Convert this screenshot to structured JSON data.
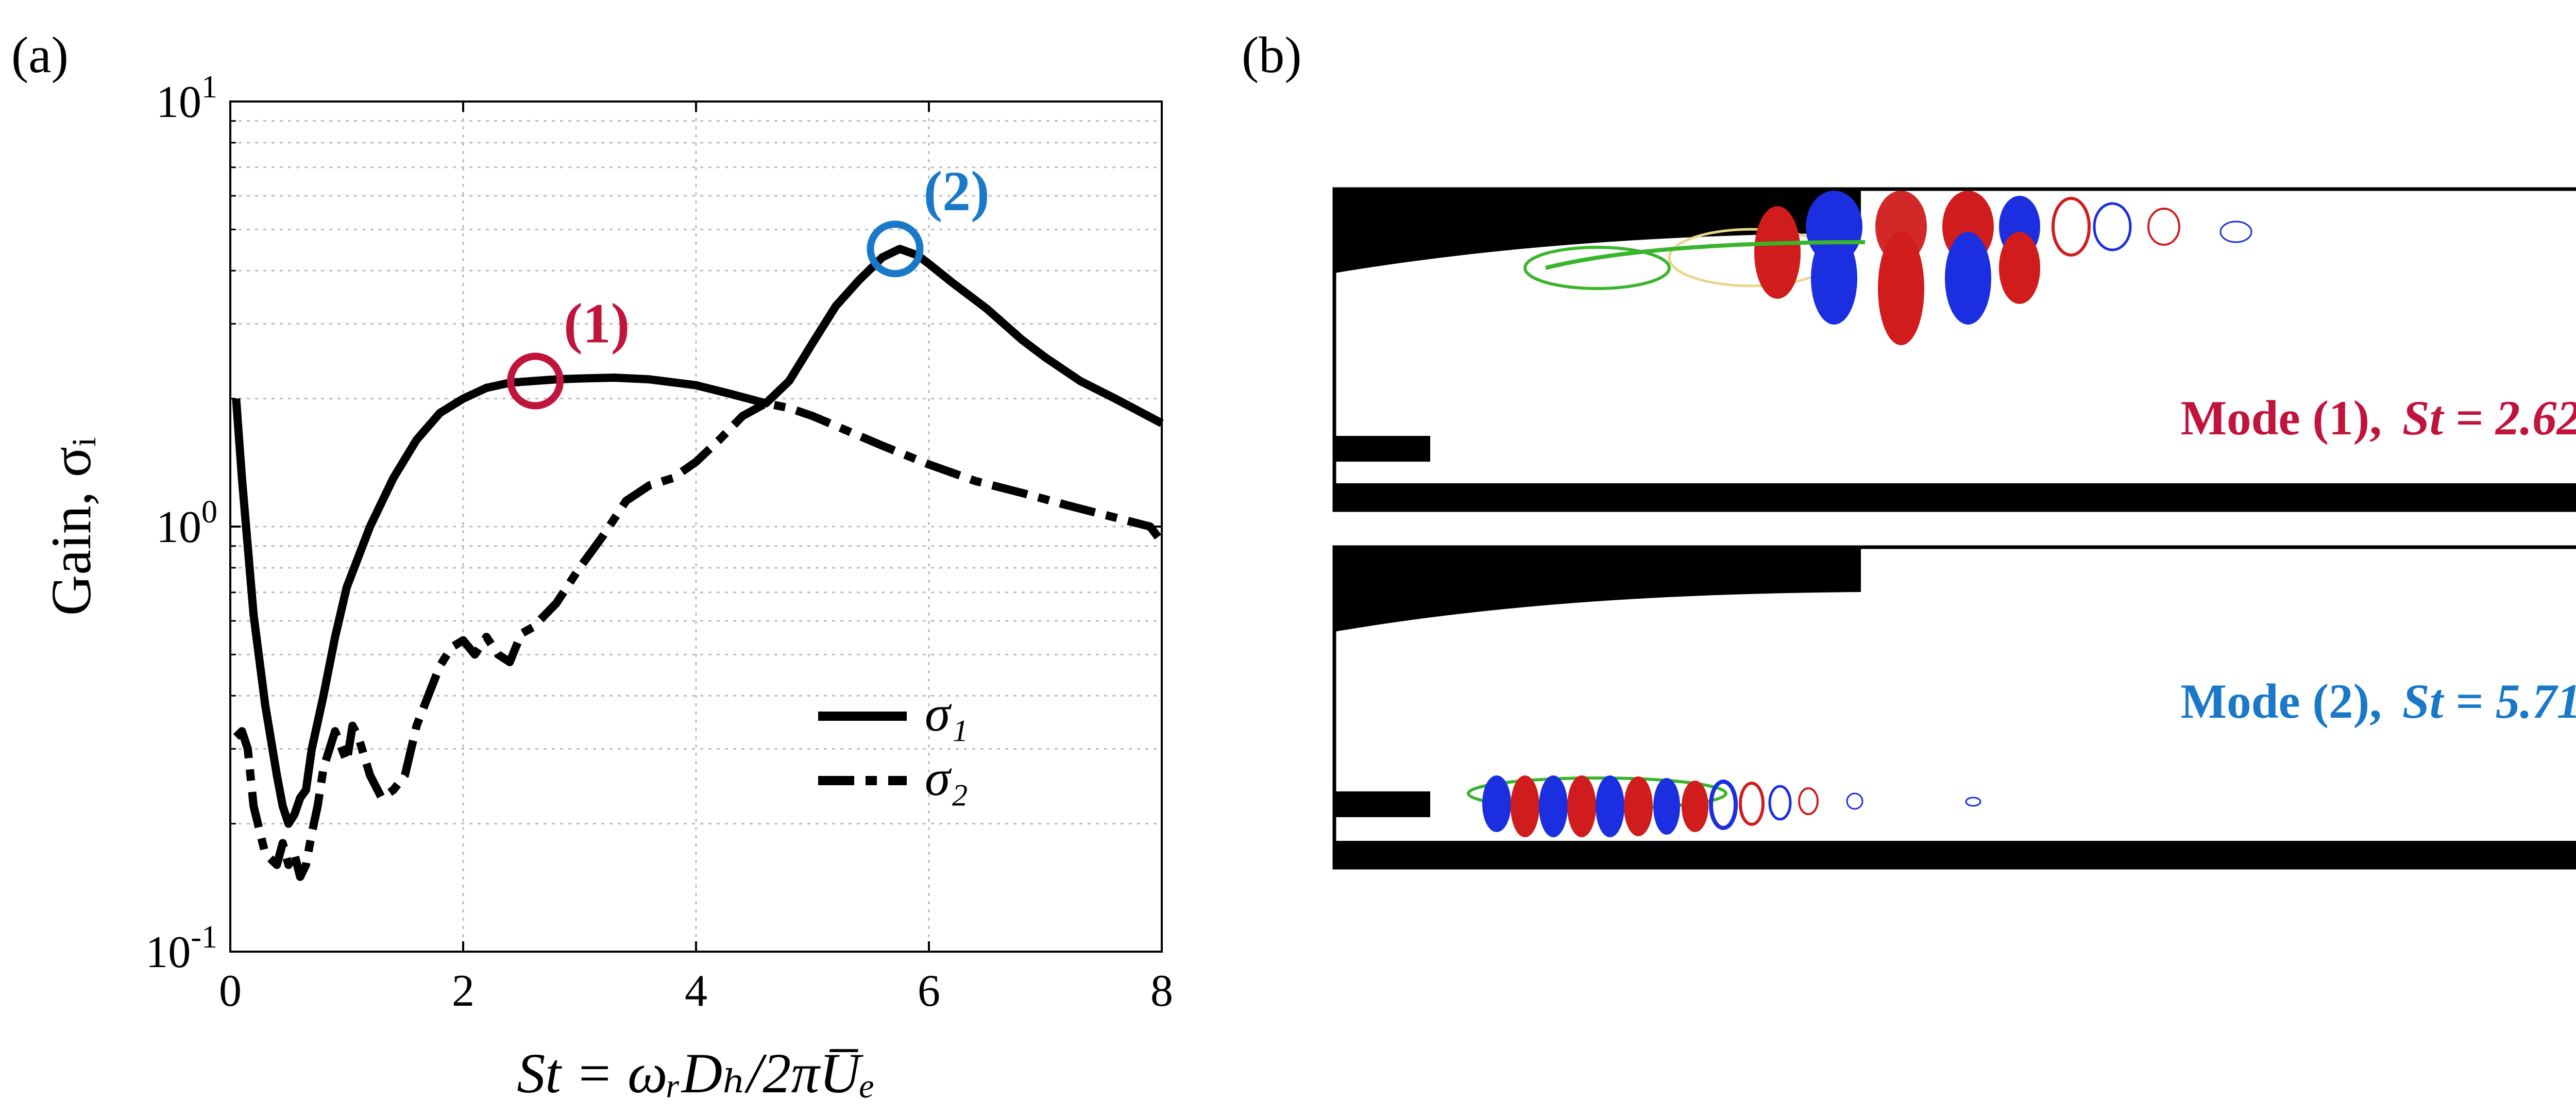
{
  "panel_a_label": "(a)",
  "panel_b_label": "(b)",
  "chart_data": {
    "type": "line",
    "xlabel": "St = ωᵣDₕ/2πU̅ₑ",
    "ylabel": "Gain, σᵢ",
    "xlim": [
      0,
      8
    ],
    "ylim": [
      0.1,
      10
    ],
    "yscale": "log",
    "grid": true,
    "legend_position": "lower-right",
    "xticks": [
      0,
      2,
      4,
      6,
      8
    ],
    "xtick_labels": [
      "0",
      "2",
      "4",
      "6",
      "8"
    ],
    "yticks": [
      0.1,
      1,
      10
    ],
    "ytick_bases": [
      "10",
      "10",
      "10"
    ],
    "ytick_exps": [
      "-1",
      "0",
      "1"
    ],
    "series": [
      {
        "name": "σ₁",
        "style": "solid",
        "x": [
          0.05,
          0.1,
          0.2,
          0.3,
          0.4,
          0.45,
          0.5,
          0.55,
          0.6,
          0.65,
          0.7,
          0.8,
          0.9,
          1.0,
          1.2,
          1.4,
          1.6,
          1.8,
          2.0,
          2.2,
          2.4,
          2.6,
          2.8,
          3.0,
          3.3,
          3.6,
          4.0,
          4.3,
          4.6,
          4.8,
          5.0,
          5.2,
          5.4,
          5.6,
          5.75,
          5.9,
          6.0,
          6.2,
          6.5,
          6.8,
          7.0,
          7.3,
          7.6,
          8.0
        ],
        "y": [
          2.0,
          1.3,
          0.62,
          0.38,
          0.26,
          0.22,
          0.2,
          0.21,
          0.23,
          0.24,
          0.3,
          0.4,
          0.55,
          0.72,
          1.0,
          1.3,
          1.6,
          1.85,
          2.0,
          2.12,
          2.18,
          2.2,
          2.22,
          2.23,
          2.24,
          2.22,
          2.15,
          2.05,
          1.95,
          2.2,
          2.7,
          3.3,
          3.8,
          4.3,
          4.5,
          4.35,
          4.15,
          3.75,
          3.25,
          2.75,
          2.5,
          2.2,
          2.0,
          1.75
        ]
      },
      {
        "name": "σ₂",
        "style": "dashdot",
        "x": [
          0.05,
          0.1,
          0.15,
          0.2,
          0.3,
          0.4,
          0.45,
          0.5,
          0.55,
          0.6,
          0.65,
          0.7,
          0.75,
          0.8,
          0.9,
          1.0,
          1.05,
          1.1,
          1.2,
          1.3,
          1.4,
          1.5,
          1.6,
          1.7,
          1.8,
          1.9,
          2.0,
          2.1,
          2.2,
          2.3,
          2.4,
          2.5,
          2.6,
          2.8,
          3.0,
          3.2,
          3.4,
          3.6,
          3.8,
          4.0,
          4.2,
          4.4,
          4.6,
          4.8,
          5.0,
          5.3,
          5.6,
          6.0,
          6.4,
          6.8,
          7.2,
          7.6,
          7.9,
          8.0
        ],
        "y": [
          0.32,
          0.33,
          0.3,
          0.22,
          0.17,
          0.16,
          0.18,
          0.16,
          0.17,
          0.15,
          0.16,
          0.19,
          0.22,
          0.27,
          0.33,
          0.28,
          0.34,
          0.32,
          0.26,
          0.23,
          0.24,
          0.26,
          0.34,
          0.4,
          0.47,
          0.52,
          0.54,
          0.5,
          0.55,
          0.5,
          0.48,
          0.56,
          0.58,
          0.66,
          0.8,
          0.95,
          1.15,
          1.25,
          1.3,
          1.42,
          1.6,
          1.82,
          1.95,
          1.9,
          1.82,
          1.68,
          1.55,
          1.4,
          1.28,
          1.2,
          1.12,
          1.05,
          1.0,
          0.92
        ]
      }
    ],
    "markers": [
      {
        "label": "(1)",
        "x": 2.62,
        "y": 2.2,
        "color": "#c0143c"
      },
      {
        "label": "(2)",
        "x": 5.71,
        "y": 4.5,
        "color": "#1a78c8"
      }
    ]
  },
  "panel_b": {
    "mode1": {
      "label": "Mode (1),",
      "st": "St = 2.62",
      "color": "#c0143c"
    },
    "mode2": {
      "label": "Mode (2),",
      "st": "St = 5.71",
      "color": "#1a78c8"
    }
  }
}
